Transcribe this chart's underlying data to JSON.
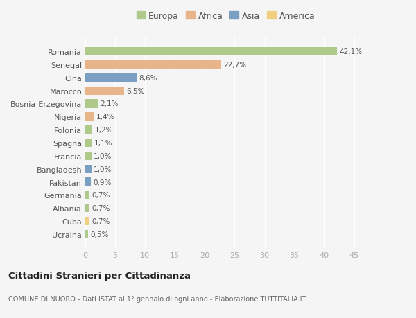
{
  "countries": [
    "Ucraina",
    "Cuba",
    "Albania",
    "Germania",
    "Pakistan",
    "Bangladesh",
    "Francia",
    "Spagna",
    "Polonia",
    "Nigeria",
    "Bosnia-Erzegovina",
    "Marocco",
    "Cina",
    "Senegal",
    "Romania"
  ],
  "values": [
    0.5,
    0.7,
    0.7,
    0.7,
    0.9,
    1.0,
    1.0,
    1.1,
    1.2,
    1.4,
    2.1,
    6.5,
    8.6,
    22.7,
    42.1
  ],
  "labels": [
    "0,5%",
    "0,7%",
    "0,7%",
    "0,7%",
    "0,9%",
    "1,0%",
    "1,0%",
    "1,1%",
    "1,2%",
    "1,4%",
    "2,1%",
    "6,5%",
    "8,6%",
    "22,7%",
    "42,1%"
  ],
  "continents": [
    "Europa",
    "America",
    "Europa",
    "Europa",
    "Asia",
    "Asia",
    "Europa",
    "Europa",
    "Europa",
    "Africa",
    "Europa",
    "Africa",
    "Asia",
    "Africa",
    "Europa"
  ],
  "continent_colors": {
    "Europa": "#aec98a",
    "Africa": "#e8b48a",
    "Asia": "#7a9fc2",
    "America": "#f0d080"
  },
  "legend_order": [
    "Europa",
    "Africa",
    "Asia",
    "America"
  ],
  "legend_colors": [
    "#aec98a",
    "#e8b48a",
    "#7a9fc2",
    "#f0d080"
  ],
  "background_color": "#f5f5f5",
  "title": "Cittadini Stranieri per Cittadinanza",
  "subtitle": "COMUNE DI NUORO - Dati ISTAT al 1° gennaio di ogni anno - Elaborazione TUTTITALIA.IT",
  "xlim": [
    0,
    47
  ],
  "xticks": [
    0,
    5,
    10,
    15,
    20,
    25,
    30,
    35,
    40,
    45
  ]
}
